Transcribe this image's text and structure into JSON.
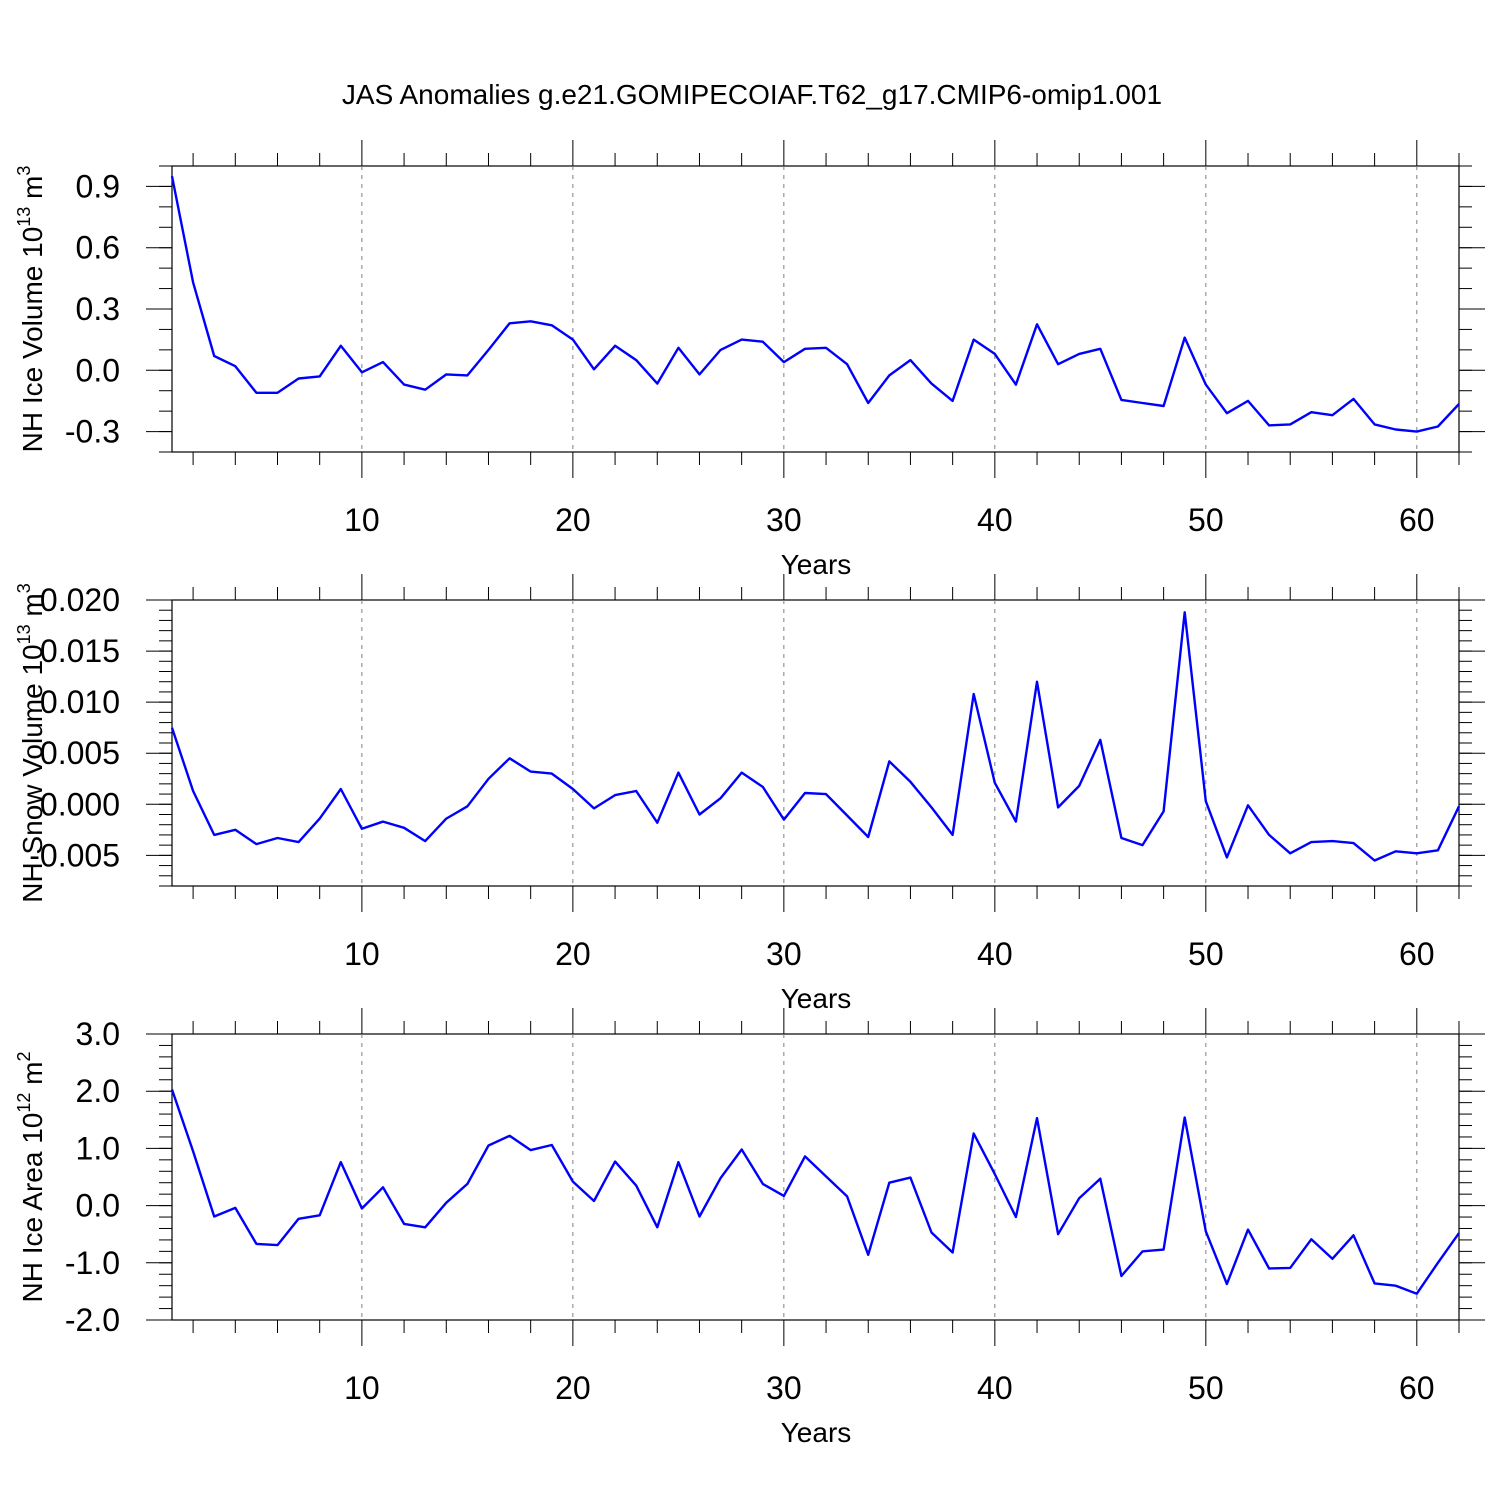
{
  "title": "JAS Anomalies g.e21.GOMIPECOIAF.T62_g17.CMIP6-omip1.001",
  "colors": {
    "series": "#0000ff",
    "axes": "#000000",
    "grid": "#808080"
  },
  "chart_data": [
    {
      "type": "line",
      "ylabel": {
        "prefix": "NH Ice Volume 10",
        "exp": "13",
        "unit": " m",
        "unit_exp": "3"
      },
      "xlabel": "Years",
      "xlim": [
        1,
        62
      ],
      "ylim": [
        -0.4,
        1.0
      ],
      "xticks": [
        "10",
        "20",
        "30",
        "40",
        "50",
        "60"
      ],
      "yticks": [
        "0.9",
        "0.6",
        "0.3",
        "0.0",
        "-0.3"
      ],
      "grid": "vertical dashed at x major ticks",
      "series": [
        {
          "x": [
            1,
            2,
            3,
            4,
            5,
            6,
            7,
            8,
            9,
            10,
            11,
            12,
            13,
            14,
            15,
            16,
            17,
            18,
            19,
            20,
            21,
            22,
            23,
            24,
            25,
            26,
            27,
            28,
            29,
            30,
            31,
            32,
            33,
            34,
            35,
            36,
            37,
            38,
            39,
            40,
            41,
            42,
            43,
            44,
            45,
            46,
            47,
            48,
            49,
            50,
            51,
            52,
            53,
            54,
            55,
            56,
            57,
            58,
            59,
            60,
            61,
            62
          ],
          "values": [
            0.95,
            0.43,
            0.07,
            0.02,
            -0.11,
            -0.11,
            -0.04,
            -0.03,
            0.12,
            -0.01,
            0.04,
            -0.07,
            -0.095,
            -0.02,
            -0.025,
            0.1,
            0.23,
            0.24,
            0.22,
            0.15,
            0.005,
            0.12,
            0.05,
            -0.065,
            0.11,
            -0.02,
            0.1,
            0.15,
            0.14,
            0.04,
            0.105,
            0.11,
            0.03,
            -0.16,
            -0.025,
            0.05,
            -0.065,
            -0.15,
            0.15,
            0.08,
            -0.07,
            0.225,
            0.03,
            0.08,
            0.105,
            -0.145,
            -0.16,
            -0.175,
            0.16,
            -0.07,
            -0.21,
            -0.15,
            -0.27,
            -0.265,
            -0.205,
            -0.22,
            -0.14,
            -0.265,
            -0.29,
            -0.3,
            -0.275,
            -0.165
          ]
        }
      ]
    },
    {
      "type": "line",
      "ylabel": {
        "prefix": "NH Snow Volume 10",
        "exp": "13",
        "unit": " m",
        "unit_exp": "3"
      },
      "xlabel": "Years",
      "xlim": [
        1,
        62
      ],
      "ylim": [
        -0.008,
        0.02
      ],
      "xticks": [
        "10",
        "20",
        "30",
        "40",
        "50",
        "60"
      ],
      "yticks": [
        "0.020",
        "0.015",
        "0.010",
        "0.005",
        "0.000",
        "-0.005"
      ],
      "grid": "vertical dashed at x major ticks",
      "series": [
        {
          "x": [
            1,
            2,
            3,
            4,
            5,
            6,
            7,
            8,
            9,
            10,
            11,
            12,
            13,
            14,
            15,
            16,
            17,
            18,
            19,
            20,
            21,
            22,
            23,
            24,
            25,
            26,
            27,
            28,
            29,
            30,
            31,
            32,
            33,
            34,
            35,
            36,
            37,
            38,
            39,
            40,
            41,
            42,
            43,
            44,
            45,
            46,
            47,
            48,
            49,
            50,
            51,
            52,
            53,
            54,
            55,
            56,
            57,
            58,
            59,
            60,
            61,
            62
          ],
          "values": [
            0.0075,
            0.0013,
            -0.003,
            -0.0025,
            -0.0039,
            -0.0033,
            -0.0037,
            -0.0014,
            0.0015,
            -0.0024,
            -0.0017,
            -0.0023,
            -0.0036,
            -0.0014,
            -0.0002,
            0.0025,
            0.0045,
            0.0032,
            0.003,
            0.0015,
            -0.0004,
            0.0009,
            0.0013,
            -0.0018,
            0.0031,
            -0.001,
            0.0006,
            0.0031,
            0.0017,
            -0.0015,
            0.0011,
            0.001,
            -0.0011,
            -0.0032,
            0.0042,
            0.0022,
            -0.0003,
            -0.003,
            0.0108,
            0.0021,
            -0.0017,
            0.012,
            -0.0003,
            0.0018,
            0.0063,
            -0.0033,
            -0.004,
            -0.0007,
            0.0188,
            0.0003,
            -0.0052,
            -0.0001,
            -0.003,
            -0.0048,
            -0.0037,
            -0.0036,
            -0.0038,
            -0.0055,
            -0.0046,
            -0.0048,
            -0.0045,
            -0.0002
          ]
        }
      ]
    },
    {
      "type": "line",
      "ylabel": {
        "prefix": "NH Ice Area 10",
        "exp": "12",
        "unit": " m",
        "unit_exp": "2"
      },
      "xlabel": "Years",
      "xlim": [
        1,
        62
      ],
      "ylim": [
        -2.0,
        3.0
      ],
      "xticks": [
        "10",
        "20",
        "30",
        "40",
        "50",
        "60"
      ],
      "yticks": [
        "3.0",
        "2.0",
        "1.0",
        "0.0",
        "-1.0",
        "-2.0"
      ],
      "grid": "vertical dashed at x major ticks",
      "series": [
        {
          "x": [
            1,
            2,
            3,
            4,
            5,
            6,
            7,
            8,
            9,
            10,
            11,
            12,
            13,
            14,
            15,
            16,
            17,
            18,
            19,
            20,
            21,
            22,
            23,
            24,
            25,
            26,
            27,
            28,
            29,
            30,
            31,
            32,
            33,
            34,
            35,
            36,
            37,
            38,
            39,
            40,
            41,
            42,
            43,
            44,
            45,
            46,
            47,
            48,
            49,
            50,
            51,
            52,
            53,
            54,
            55,
            56,
            57,
            58,
            59,
            60,
            61,
            62
          ],
          "values": [
            2.03,
            0.95,
            -0.19,
            -0.04,
            -0.67,
            -0.69,
            -0.23,
            -0.17,
            0.76,
            -0.05,
            0.32,
            -0.32,
            -0.38,
            0.05,
            0.38,
            1.05,
            1.22,
            0.97,
            1.06,
            0.42,
            0.08,
            0.77,
            0.35,
            -0.38,
            0.76,
            -0.19,
            0.48,
            0.98,
            0.38,
            0.17,
            0.86,
            0.51,
            0.16,
            -0.86,
            0.4,
            0.49,
            -0.47,
            -0.82,
            1.26,
            0.55,
            -0.2,
            1.53,
            -0.5,
            0.13,
            0.47,
            -1.23,
            -0.8,
            -0.77,
            1.54,
            -0.45,
            -1.37,
            -0.42,
            -1.1,
            -1.09,
            -0.59,
            -0.93,
            -0.52,
            -1.36,
            -1.4,
            -1.54,
            -1.0,
            -0.48
          ]
        }
      ]
    }
  ]
}
